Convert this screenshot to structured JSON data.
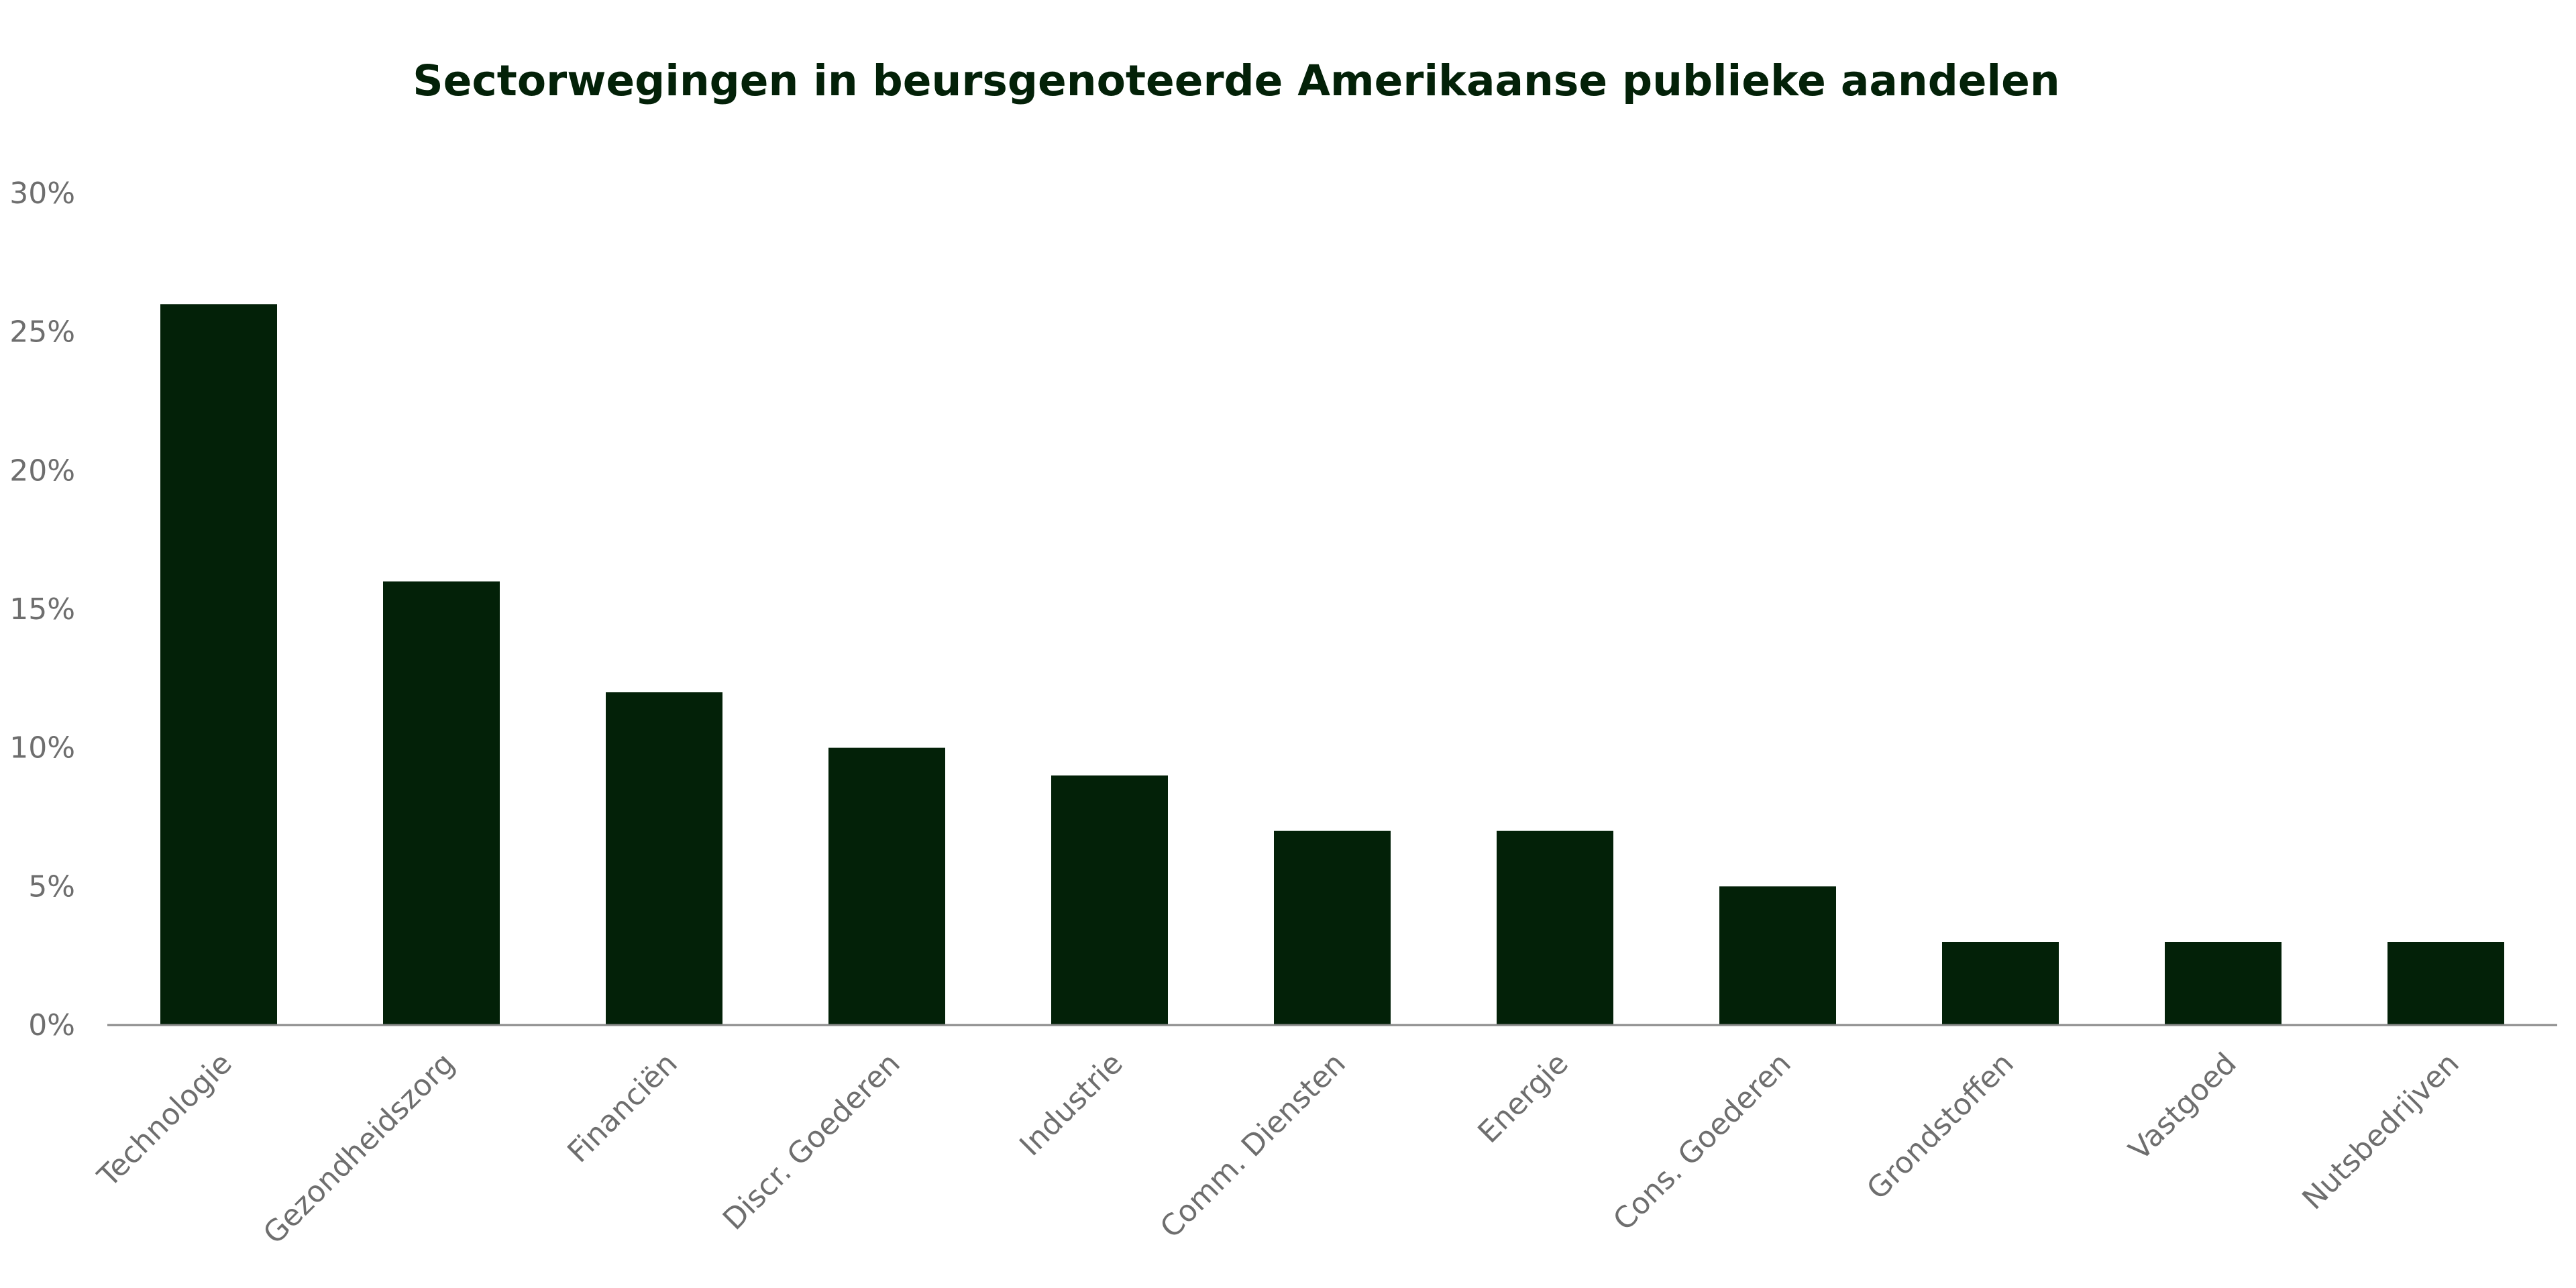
{
  "chart_data": {
    "type": "bar",
    "title": "Sectorwegingen in beursgenoteerde Amerikaanse publieke aandelen",
    "xlabel": "",
    "ylabel": "",
    "categories": [
      "Technologie",
      "Gezondheidszorg",
      "Financiën",
      "Discr. Goederen",
      "Industrie",
      "Comm. Diensten",
      "Energie",
      "Cons. Goederen",
      "Grondstoffen",
      "Vastgoed",
      "Nutsbedrijven"
    ],
    "values": [
      26,
      16,
      12,
      10,
      9,
      7,
      7,
      5,
      3,
      3,
      3
    ],
    "ylim": [
      0,
      30
    ],
    "yticks": [
      0,
      5,
      10,
      15,
      20,
      25,
      30
    ],
    "ytick_labels": [
      "0%",
      "5%",
      "10%",
      "15%",
      "20%",
      "25%",
      "30%"
    ],
    "grid": false,
    "legend": "none",
    "colors": {
      "bar": "#032108",
      "title": "#032108",
      "axis": "#8a8a8a",
      "tick_text": "#6e6e6e"
    }
  }
}
